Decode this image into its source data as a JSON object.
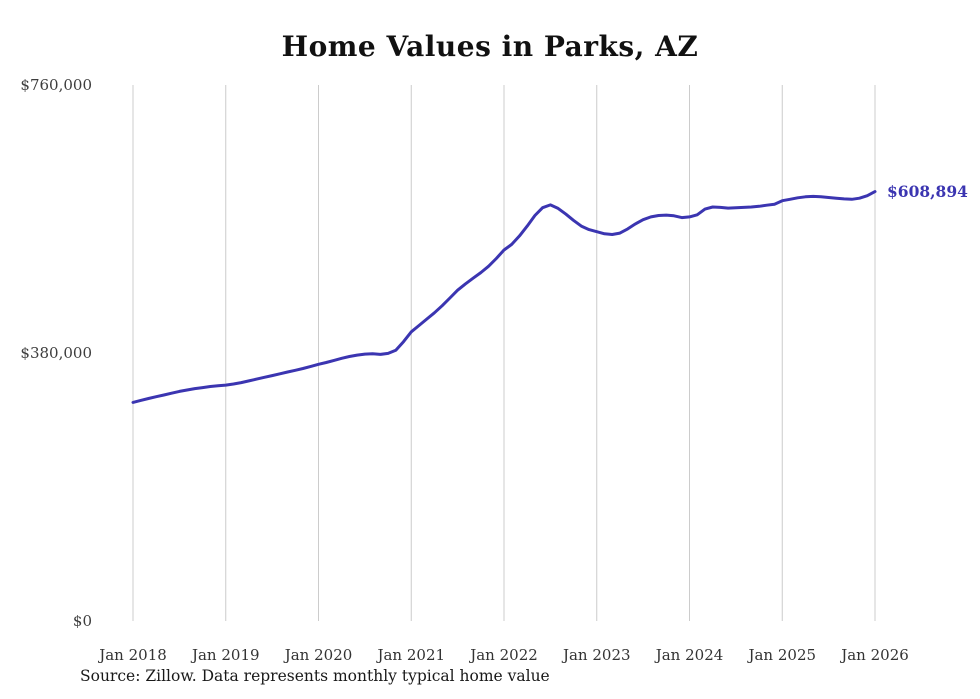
{
  "source_note": "Source: Zillow. Data represents monthly typical home value",
  "chart_data": {
    "type": "line",
    "title": "Home Values in Parks, AZ",
    "xlabel": "",
    "ylabel": "",
    "ylim": [
      0,
      760000
    ],
    "grid": "vertical-only",
    "legend": "none",
    "line_color": "#3b35b1",
    "gridline_color": "#cccccc",
    "end_label": "$608,894",
    "end_value": 608894,
    "x_ticks": [
      "Jan 2018",
      "Jan 2019",
      "Jan 2020",
      "Jan 2021",
      "Jan 2022",
      "Jan 2023",
      "Jan 2024",
      "Jan 2025",
      "Jan 2026"
    ],
    "y_ticks": [
      {
        "value": 760000,
        "label": "$760,000"
      },
      {
        "value": 380000,
        "label": "$380,000"
      },
      {
        "value": 0,
        "label": "$0"
      }
    ],
    "series": [
      {
        "name": "Monthly typical home value",
        "months": [
          "2018-01",
          "2018-02",
          "2018-03",
          "2018-04",
          "2018-05",
          "2018-06",
          "2018-07",
          "2018-08",
          "2018-09",
          "2018-10",
          "2018-11",
          "2018-12",
          "2019-01",
          "2019-02",
          "2019-03",
          "2019-04",
          "2019-05",
          "2019-06",
          "2019-07",
          "2019-08",
          "2019-09",
          "2019-10",
          "2019-11",
          "2019-12",
          "2020-01",
          "2020-02",
          "2020-03",
          "2020-04",
          "2020-05",
          "2020-06",
          "2020-07",
          "2020-08",
          "2020-09",
          "2020-10",
          "2020-11",
          "2020-12",
          "2021-01",
          "2021-02",
          "2021-03",
          "2021-04",
          "2021-05",
          "2021-06",
          "2021-07",
          "2021-08",
          "2021-09",
          "2021-10",
          "2021-11",
          "2021-12",
          "2022-01",
          "2022-02",
          "2022-03",
          "2022-04",
          "2022-05",
          "2022-06",
          "2022-07",
          "2022-08",
          "2022-09",
          "2022-10",
          "2022-11",
          "2022-12",
          "2023-01",
          "2023-02",
          "2023-03",
          "2023-04",
          "2023-05",
          "2023-06",
          "2023-07",
          "2023-08",
          "2023-09",
          "2023-10",
          "2023-11",
          "2023-12",
          "2024-01",
          "2024-02",
          "2024-03",
          "2024-04",
          "2024-05",
          "2024-06",
          "2024-07",
          "2024-08",
          "2024-09",
          "2024-10",
          "2024-11",
          "2024-12",
          "2025-01",
          "2025-02",
          "2025-03",
          "2025-04",
          "2025-05",
          "2025-06",
          "2025-07",
          "2025-08",
          "2025-09",
          "2025-10",
          "2025-11",
          "2025-12",
          "2026-01"
        ],
        "values": [
          310000,
          312800,
          315500,
          318000,
          320500,
          323000,
          325500,
          327500,
          329500,
          331000,
          332500,
          333500,
          334500,
          336000,
          338000,
          340500,
          343000,
          345500,
          348000,
          350500,
          353000,
          355500,
          358000,
          361000,
          364000,
          366500,
          369500,
          372500,
          375000,
          377000,
          378500,
          379000,
          378000,
          379500,
          384000,
          396000,
          410000,
          419000,
          428000,
          437000,
          447000,
          458000,
          469000,
          478000,
          486000,
          494000,
          503000,
          514000,
          526000,
          534000,
          546000,
          560000,
          575000,
          586000,
          590000,
          585000,
          577000,
          568000,
          560000,
          555000,
          552000,
          549000,
          548000,
          550000,
          556000,
          563000,
          569000,
          573000,
          575000,
          575500,
          574500,
          572000,
          573000,
          576000,
          584000,
          587000,
          586500,
          585500,
          586000,
          586500,
          587000,
          588000,
          589500,
          591000,
          596000,
          598000,
          600000,
          601500,
          602000,
          601500,
          600500,
          599500,
          598500,
          598000,
          599500,
          603000,
          608894
        ]
      }
    ]
  }
}
